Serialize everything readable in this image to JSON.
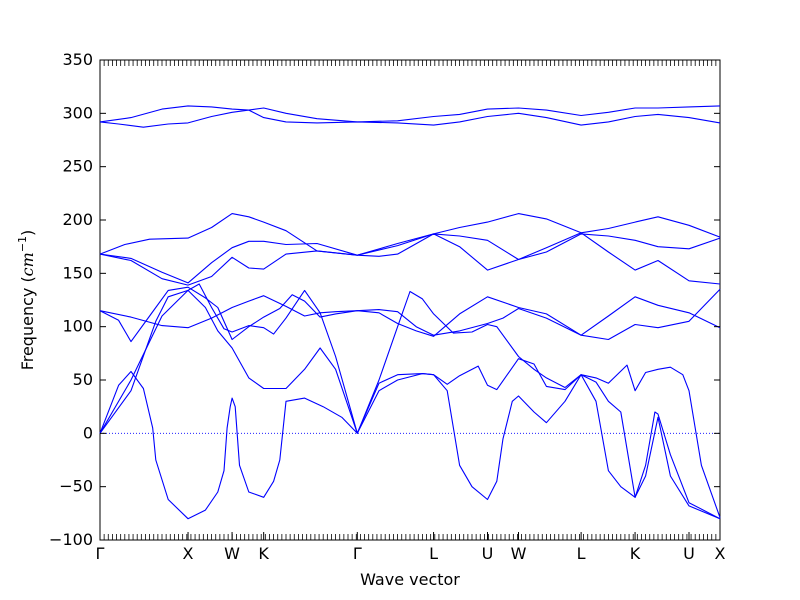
{
  "chart_data": {
    "type": "line",
    "xlabel": "Wave vector",
    "ylabel": "Frequency ($cm^{-1}$)",
    "ylabel_parts": {
      "text": "Frequency (",
      "math_base": "cm",
      "math_sup": "−1",
      "close": ")"
    },
    "ylim": [
      -100,
      350
    ],
    "yticks": [
      -100,
      -50,
      0,
      50,
      100,
      150,
      200,
      250,
      300,
      350
    ],
    "grid": false,
    "legend": "none",
    "line_color": "#0000ff",
    "zero_line_color": "#0000ff",
    "xlim": [
      0,
      1
    ],
    "high_symmetry_points": [
      {
        "label": "Γ",
        "x": 0.0
      },
      {
        "label": "X",
        "x": 0.142
      },
      {
        "label": "W",
        "x": 0.213
      },
      {
        "label": "K",
        "x": 0.264
      },
      {
        "label": "Γ",
        "x": 0.415
      },
      {
        "label": "L",
        "x": 0.538
      },
      {
        "label": "U",
        "x": 0.625
      },
      {
        "label": "W",
        "x": 0.675
      },
      {
        "label": "L",
        "x": 0.776
      },
      {
        "label": "K",
        "x": 0.863
      },
      {
        "label": "U",
        "x": 0.95
      },
      {
        "label": "X",
        "x": 1.0
      }
    ],
    "series": [
      {
        "values": [
          [
            0,
            292
          ],
          [
            0.03,
            290
          ],
          [
            0.07,
            287
          ],
          [
            0.11,
            290
          ],
          [
            0.142,
            291
          ],
          [
            0.18,
            297
          ],
          [
            0.213,
            301
          ],
          [
            0.24,
            303
          ],
          [
            0.264,
            305
          ],
          [
            0.3,
            300
          ],
          [
            0.35,
            295
          ],
          [
            0.415,
            292
          ],
          [
            0.48,
            293
          ],
          [
            0.538,
            297
          ],
          [
            0.58,
            299
          ],
          [
            0.625,
            304
          ],
          [
            0.675,
            305
          ],
          [
            0.72,
            303
          ],
          [
            0.776,
            298
          ],
          [
            0.82,
            301
          ],
          [
            0.863,
            305
          ],
          [
            0.9,
            305
          ],
          [
            0.95,
            306
          ],
          [
            1.0,
            307
          ]
        ]
      },
      {
        "values": [
          [
            0,
            292
          ],
          [
            0.05,
            296
          ],
          [
            0.1,
            304
          ],
          [
            0.142,
            307
          ],
          [
            0.18,
            306
          ],
          [
            0.213,
            304
          ],
          [
            0.24,
            303
          ],
          [
            0.264,
            296
          ],
          [
            0.3,
            292
          ],
          [
            0.35,
            291
          ],
          [
            0.415,
            292
          ],
          [
            0.48,
            291
          ],
          [
            0.538,
            289
          ],
          [
            0.58,
            292
          ],
          [
            0.625,
            297
          ],
          [
            0.675,
            300
          ],
          [
            0.72,
            296
          ],
          [
            0.776,
            289
          ],
          [
            0.82,
            292
          ],
          [
            0.863,
            297
          ],
          [
            0.9,
            299
          ],
          [
            0.95,
            296
          ],
          [
            1.0,
            291
          ]
        ]
      },
      {
        "values": [
          [
            0,
            168
          ],
          [
            0.04,
            177
          ],
          [
            0.08,
            182
          ],
          [
            0.142,
            183
          ],
          [
            0.18,
            193
          ],
          [
            0.213,
            206
          ],
          [
            0.24,
            203
          ],
          [
            0.264,
            198
          ],
          [
            0.3,
            190
          ],
          [
            0.35,
            171
          ],
          [
            0.415,
            167
          ],
          [
            0.48,
            176
          ],
          [
            0.538,
            187
          ],
          [
            0.58,
            193
          ],
          [
            0.625,
            198
          ],
          [
            0.675,
            206
          ],
          [
            0.72,
            201
          ],
          [
            0.776,
            188
          ],
          [
            0.82,
            192
          ],
          [
            0.863,
            198
          ],
          [
            0.9,
            203
          ],
          [
            0.95,
            195
          ],
          [
            1.0,
            184
          ]
        ]
      },
      {
        "values": [
          [
            0,
            168
          ],
          [
            0.05,
            164
          ],
          [
            0.1,
            151
          ],
          [
            0.142,
            141
          ],
          [
            0.18,
            160
          ],
          [
            0.213,
            174
          ],
          [
            0.24,
            180
          ],
          [
            0.264,
            180
          ],
          [
            0.3,
            177
          ],
          [
            0.35,
            178
          ],
          [
            0.415,
            167
          ],
          [
            0.48,
            178
          ],
          [
            0.538,
            187
          ],
          [
            0.58,
            185
          ],
          [
            0.625,
            181
          ],
          [
            0.675,
            163
          ],
          [
            0.72,
            170
          ],
          [
            0.776,
            187
          ],
          [
            0.82,
            185
          ],
          [
            0.863,
            181
          ],
          [
            0.9,
            175
          ],
          [
            0.95,
            173
          ],
          [
            1.0,
            183
          ]
        ]
      },
      {
        "values": [
          [
            0,
            168
          ],
          [
            0.05,
            162
          ],
          [
            0.1,
            145
          ],
          [
            0.142,
            139
          ],
          [
            0.18,
            147
          ],
          [
            0.213,
            165
          ],
          [
            0.24,
            155
          ],
          [
            0.264,
            154
          ],
          [
            0.3,
            168
          ],
          [
            0.35,
            171
          ],
          [
            0.415,
            167
          ],
          [
            0.45,
            166
          ],
          [
            0.48,
            168
          ],
          [
            0.538,
            187
          ],
          [
            0.58,
            175
          ],
          [
            0.625,
            153
          ],
          [
            0.675,
            163
          ],
          [
            0.72,
            174
          ],
          [
            0.776,
            188
          ],
          [
            0.82,
            170
          ],
          [
            0.863,
            153
          ],
          [
            0.9,
            162
          ],
          [
            0.95,
            143
          ],
          [
            1.0,
            140
          ]
        ]
      },
      {
        "values": [
          [
            0,
            115
          ],
          [
            0.03,
            106
          ],
          [
            0.05,
            86
          ],
          [
            0.08,
            110
          ],
          [
            0.11,
            134
          ],
          [
            0.142,
            137
          ],
          [
            0.17,
            127
          ],
          [
            0.19,
            118
          ],
          [
            0.213,
            88
          ],
          [
            0.24,
            100
          ],
          [
            0.264,
            109
          ],
          [
            0.29,
            117
          ],
          [
            0.31,
            130
          ],
          [
            0.33,
            124
          ],
          [
            0.355,
            109
          ],
          [
            0.38,
            112
          ],
          [
            0.415,
            115
          ],
          [
            0.45,
            116
          ],
          [
            0.48,
            114
          ],
          [
            0.51,
            100
          ],
          [
            0.538,
            92
          ],
          [
            0.58,
            96
          ],
          [
            0.625,
            103
          ],
          [
            0.65,
            108
          ],
          [
            0.675,
            117
          ],
          [
            0.72,
            108
          ],
          [
            0.776,
            92
          ],
          [
            0.82,
            88
          ],
          [
            0.863,
            102
          ],
          [
            0.9,
            99
          ],
          [
            0.95,
            105
          ],
          [
            1.0,
            135
          ]
        ]
      },
      {
        "values": [
          [
            0,
            115
          ],
          [
            0.05,
            109
          ],
          [
            0.1,
            101
          ],
          [
            0.142,
            99
          ],
          [
            0.18,
            108
          ],
          [
            0.213,
            118
          ],
          [
            0.24,
            124
          ],
          [
            0.264,
            129
          ],
          [
            0.3,
            119
          ],
          [
            0.33,
            110
          ],
          [
            0.355,
            113
          ],
          [
            0.38,
            114
          ],
          [
            0.415,
            115
          ],
          [
            0.45,
            113
          ],
          [
            0.48,
            103
          ],
          [
            0.51,
            96
          ],
          [
            0.538,
            91
          ],
          [
            0.58,
            112
          ],
          [
            0.625,
            128
          ],
          [
            0.675,
            118
          ],
          [
            0.72,
            112
          ],
          [
            0.776,
            92
          ],
          [
            0.82,
            110
          ],
          [
            0.863,
            128
          ],
          [
            0.9,
            120
          ],
          [
            0.95,
            113
          ],
          [
            1.0,
            99
          ]
        ]
      },
      {
        "values": [
          [
            0,
            0
          ],
          [
            0.03,
            45
          ],
          [
            0.05,
            58
          ],
          [
            0.07,
            42
          ],
          [
            0.085,
            5
          ],
          [
            0.09,
            -25
          ],
          [
            0.11,
            -62
          ],
          [
            0.142,
            -80
          ],
          [
            0.17,
            -72
          ],
          [
            0.19,
            -55
          ],
          [
            0.2,
            -35
          ],
          [
            0.205,
            5
          ],
          [
            0.21,
            25
          ],
          [
            0.213,
            33
          ],
          [
            0.218,
            25
          ],
          [
            0.225,
            -30
          ],
          [
            0.24,
            -55
          ],
          [
            0.264,
            -60
          ],
          [
            0.28,
            -45
          ],
          [
            0.29,
            -25
          ],
          [
            0.3,
            30
          ],
          [
            0.33,
            33
          ],
          [
            0.36,
            25
          ],
          [
            0.39,
            15
          ],
          [
            0.415,
            0
          ]
        ]
      },
      {
        "values": [
          [
            0,
            0
          ],
          [
            0.05,
            40
          ],
          [
            0.09,
            105
          ],
          [
            0.11,
            128
          ],
          [
            0.142,
            134
          ],
          [
            0.17,
            118
          ],
          [
            0.19,
            96
          ],
          [
            0.213,
            80
          ],
          [
            0.24,
            52
          ],
          [
            0.264,
            42
          ],
          [
            0.3,
            42
          ],
          [
            0.33,
            60
          ],
          [
            0.355,
            80
          ],
          [
            0.38,
            60
          ],
          [
            0.415,
            0
          ],
          [
            0.45,
            40
          ],
          [
            0.48,
            50
          ],
          [
            0.52,
            56
          ],
          [
            0.538,
            55
          ],
          [
            0.56,
            46
          ],
          [
            0.58,
            54
          ],
          [
            0.61,
            63
          ],
          [
            0.625,
            45
          ],
          [
            0.64,
            41
          ],
          [
            0.675,
            70
          ],
          [
            0.7,
            65
          ],
          [
            0.72,
            44
          ],
          [
            0.75,
            41
          ],
          [
            0.776,
            55
          ],
          [
            0.8,
            52
          ],
          [
            0.82,
            47
          ],
          [
            0.85,
            64
          ],
          [
            0.863,
            40
          ],
          [
            0.88,
            57
          ],
          [
            0.9,
            60
          ],
          [
            0.92,
            62
          ],
          [
            0.94,
            55
          ],
          [
            0.95,
            40
          ],
          [
            0.97,
            -30
          ],
          [
            1.0,
            -79
          ]
        ]
      },
      {
        "values": [
          [
            0,
            0
          ],
          [
            0.05,
            50
          ],
          [
            0.1,
            110
          ],
          [
            0.142,
            134
          ],
          [
            0.16,
            140
          ],
          [
            0.18,
            118
          ],
          [
            0.2,
            98
          ],
          [
            0.213,
            95
          ],
          [
            0.24,
            101
          ],
          [
            0.264,
            99
          ],
          [
            0.28,
            93
          ],
          [
            0.3,
            108
          ],
          [
            0.33,
            134
          ],
          [
            0.355,
            113
          ],
          [
            0.38,
            72
          ],
          [
            0.415,
            0
          ],
          [
            0.45,
            50
          ],
          [
            0.48,
            100
          ],
          [
            0.5,
            133
          ],
          [
            0.52,
            126
          ],
          [
            0.538,
            112
          ],
          [
            0.57,
            94
          ],
          [
            0.6,
            95
          ],
          [
            0.625,
            102
          ],
          [
            0.64,
            100
          ],
          [
            0.675,
            72
          ],
          [
            0.7,
            60
          ],
          [
            0.72,
            52
          ],
          [
            0.75,
            43
          ],
          [
            0.776,
            55
          ],
          [
            0.8,
            48
          ],
          [
            0.82,
            30
          ],
          [
            0.84,
            20
          ],
          [
            0.863,
            -60
          ],
          [
            0.88,
            -30
          ],
          [
            0.895,
            20
          ],
          [
            0.9,
            18
          ],
          [
            0.92,
            -20
          ],
          [
            0.95,
            -65
          ],
          [
            1.0,
            -80
          ]
        ]
      },
      {
        "values": [
          [
            0.415,
            0
          ],
          [
            0.45,
            47
          ],
          [
            0.48,
            55
          ],
          [
            0.52,
            56
          ],
          [
            0.538,
            55
          ],
          [
            0.56,
            40
          ],
          [
            0.58,
            -30
          ],
          [
            0.6,
            -50
          ],
          [
            0.625,
            -62
          ],
          [
            0.64,
            -45
          ],
          [
            0.65,
            -5
          ],
          [
            0.665,
            30
          ],
          [
            0.675,
            35
          ],
          [
            0.7,
            20
          ],
          [
            0.72,
            10
          ],
          [
            0.75,
            30
          ],
          [
            0.776,
            55
          ],
          [
            0.8,
            30
          ],
          [
            0.82,
            -35
          ],
          [
            0.84,
            -50
          ],
          [
            0.863,
            -60
          ],
          [
            0.88,
            -40
          ],
          [
            0.9,
            15
          ],
          [
            0.92,
            -40
          ],
          [
            0.95,
            -68
          ],
          [
            1.0,
            -80
          ]
        ]
      }
    ]
  }
}
